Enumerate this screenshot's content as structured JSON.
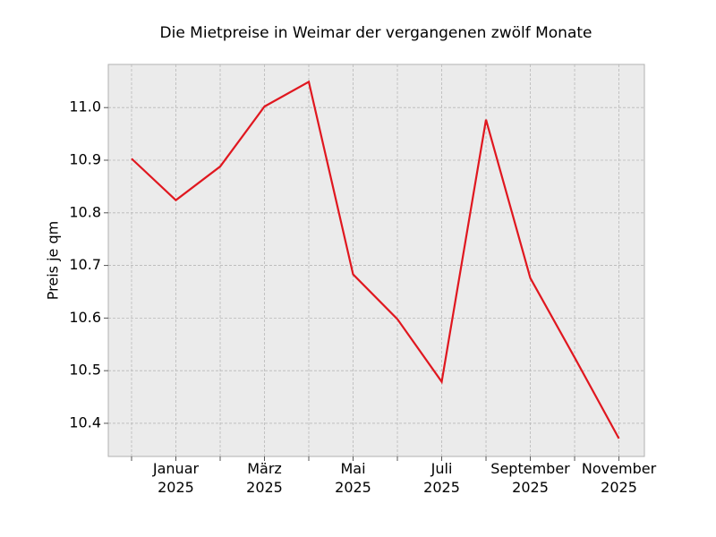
{
  "chart_data": {
    "type": "line",
    "title": "Die Mietpreise in Weimar der vergangenen zwölf Monate",
    "y_label": "Preis je qm",
    "categories": [
      null,
      "Januar\n2025",
      null,
      "März\n2025",
      null,
      "Mai\n2025",
      null,
      "Juli\n2025",
      null,
      "September\n2025",
      null,
      "November\n2025"
    ],
    "series": [
      {
        "name": "Preis je qm",
        "color": "#e0171f",
        "values": [
          10.903,
          10.824,
          10.888,
          11.002,
          11.049,
          10.683,
          10.598,
          10.479,
          10.977,
          10.676,
          10.525,
          10.371
        ]
      }
    ],
    "ylim": [
      10.337,
      11.082
    ],
    "yticks": [
      {
        "value": 10.4,
        "label": "10.4"
      },
      {
        "value": 10.5,
        "label": "10.5"
      },
      {
        "value": 10.6,
        "label": "10.6"
      },
      {
        "value": 10.7,
        "label": "10.7"
      },
      {
        "value": 10.8,
        "label": "10.8"
      },
      {
        "value": 10.9,
        "label": "10.9"
      },
      {
        "value": 11.0,
        "label": "11.0"
      }
    ],
    "grid": true
  }
}
